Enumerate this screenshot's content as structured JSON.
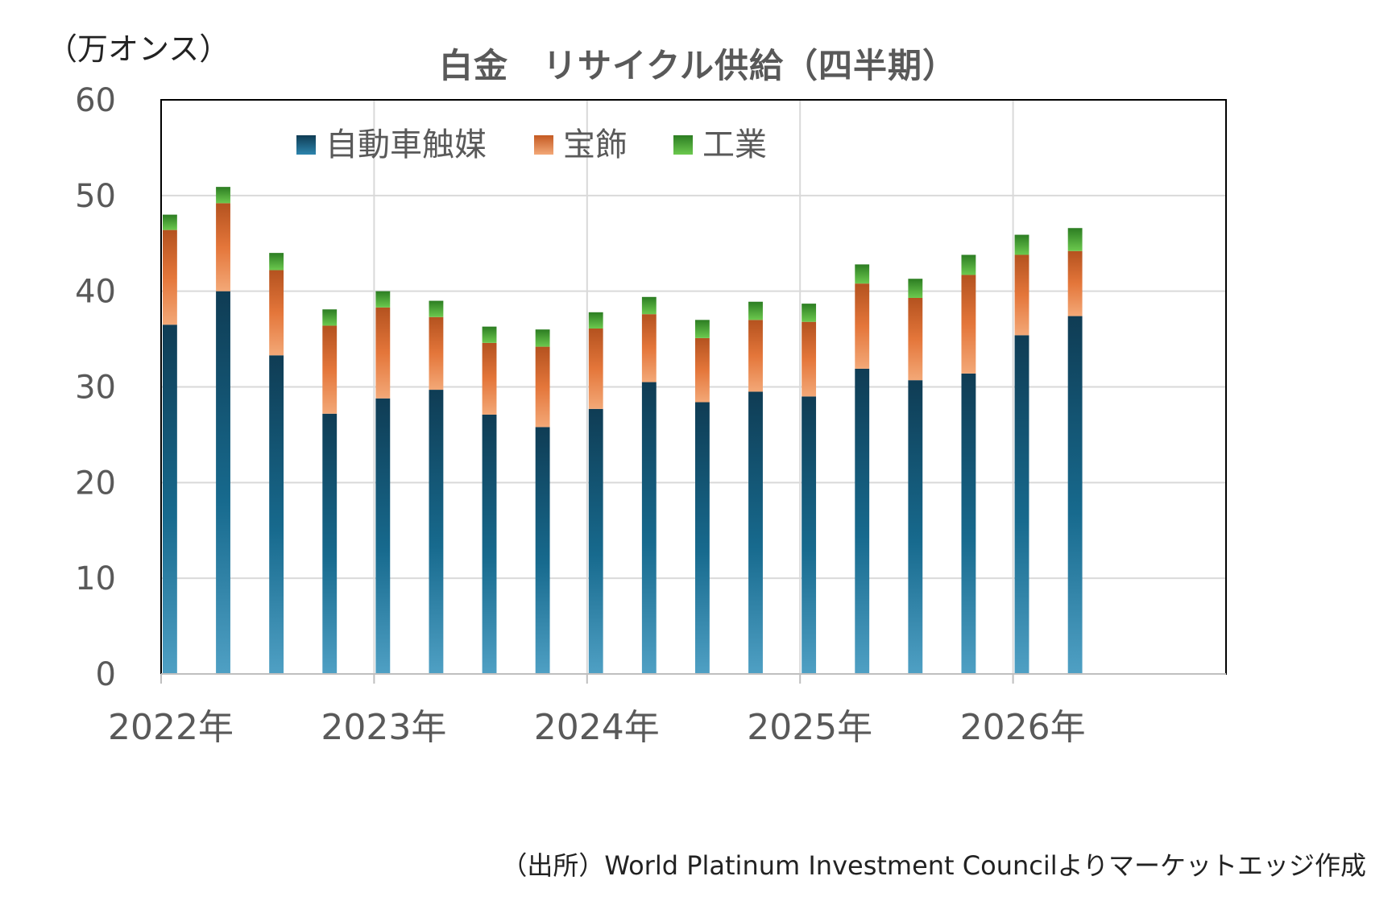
{
  "chart_data": {
    "type": "bar",
    "stacked": true,
    "title": "白金　リサイクル供給（四半期）",
    "unit": "（万オンス）",
    "source": "（出所）World Platinum Investment Councilよりマーケットエッジ作成",
    "ylim": [
      0,
      60
    ],
    "yticks": [
      0,
      10,
      20,
      30,
      40,
      50,
      60
    ],
    "x_labels": [
      "2022年",
      "2023年",
      "2024年",
      "2025年",
      "2026年"
    ],
    "quarters": [
      "2022Q1",
      "2022Q2",
      "2022Q3",
      "2022Q4",
      "2023Q1",
      "2023Q2",
      "2023Q3",
      "2023Q4",
      "2024Q1",
      "2024Q2",
      "2024Q3",
      "2024Q4",
      "2025Q1",
      "2025Q2",
      "2025Q3",
      "2025Q4",
      "2026Q1",
      "2026Q2"
    ],
    "grid": true,
    "legend_position": "top-left",
    "series": [
      {
        "name": "自動車触媒",
        "color": "#1f6f92",
        "values": [
          36.5,
          40.0,
          33.3,
          27.2,
          28.8,
          29.7,
          27.1,
          25.8,
          27.7,
          30.5,
          28.4,
          29.5,
          29.0,
          31.9,
          30.7,
          31.4,
          35.4,
          37.4
        ]
      },
      {
        "name": "宝飾",
        "color": "#e8793a",
        "values": [
          9.9,
          9.2,
          8.9,
          9.2,
          9.5,
          7.6,
          7.5,
          8.4,
          8.4,
          7.1,
          6.7,
          7.5,
          7.8,
          8.9,
          8.6,
          10.3,
          8.4,
          6.8
        ]
      },
      {
        "name": "工業",
        "color": "#3f9c2f",
        "values": [
          1.6,
          1.7,
          1.8,
          1.7,
          1.7,
          1.7,
          1.7,
          1.8,
          1.7,
          1.8,
          1.9,
          1.9,
          1.9,
          2.0,
          2.0,
          2.1,
          2.1,
          2.4
        ]
      }
    ]
  }
}
